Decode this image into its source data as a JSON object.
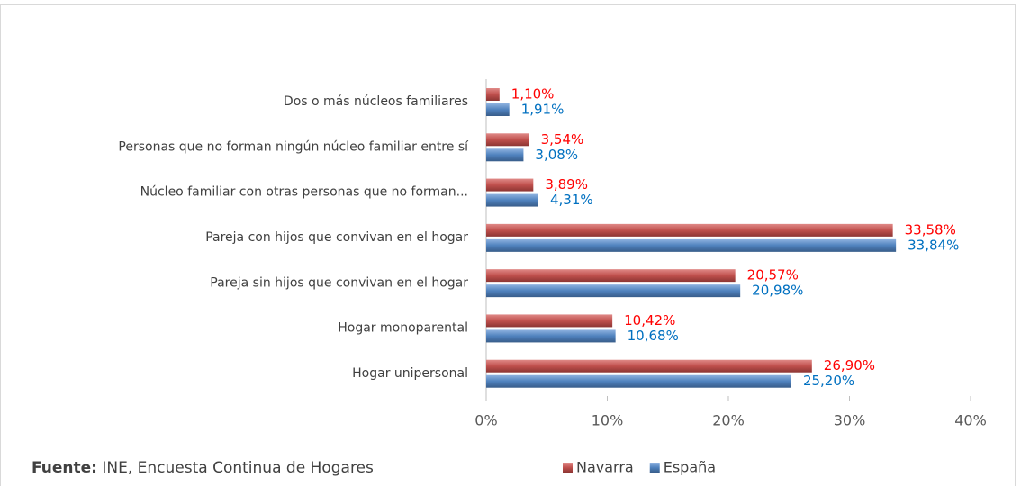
{
  "chart_data": {
    "type": "hbar",
    "categories": [
      "Dos o más núcleos familiares",
      "Personas que no forman ningún núcleo familiar entre sí",
      "Núcleo familiar con otras personas que no forman...",
      "Pareja con hijos que convivan en el hogar",
      "Pareja sin hijos que convivan en el hogar",
      "Hogar monoparental",
      "Hogar unipersonal"
    ],
    "series": [
      {
        "name": "Navarra",
        "color": "#c0504d",
        "label_color": "#ff0000",
        "values": [
          1.1,
          3.54,
          3.89,
          33.58,
          20.57,
          10.42,
          26.9
        ],
        "value_labels": [
          "1,10%",
          "3,54%",
          "3,89%",
          "33,58%",
          "20,57%",
          "10,42%",
          "26,90%"
        ]
      },
      {
        "name": "España",
        "color": "#4f81bd",
        "label_color": "#0070c0",
        "values": [
          1.91,
          3.08,
          4.31,
          33.84,
          20.98,
          10.68,
          25.2
        ],
        "value_labels": [
          "1,91%",
          "3,08%",
          "4,31%",
          "33,84%",
          "20,98%",
          "10,68%",
          "25,20%"
        ]
      }
    ],
    "xlim": [
      0,
      40
    ],
    "xticks": [
      {
        "value": 0,
        "label": "0%"
      },
      {
        "value": 10,
        "label": "10%"
      },
      {
        "value": 20,
        "label": "20%"
      },
      {
        "value": 30,
        "label": "30%"
      },
      {
        "value": 40,
        "label": "40%"
      }
    ],
    "legend": "bottom",
    "source_label": "Fuente:",
    "source": "INE, Encuesta Continua de Hogares"
  }
}
